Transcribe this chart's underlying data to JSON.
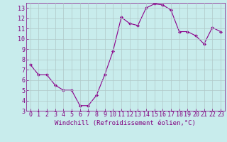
{
  "x": [
    0,
    1,
    2,
    3,
    4,
    5,
    6,
    7,
    8,
    9,
    10,
    11,
    12,
    13,
    14,
    15,
    16,
    17,
    18,
    19,
    20,
    21,
    22,
    23
  ],
  "y": [
    7.5,
    6.5,
    6.5,
    5.5,
    5.0,
    5.0,
    3.5,
    3.5,
    4.5,
    6.5,
    8.8,
    12.1,
    11.5,
    11.3,
    13.0,
    13.4,
    13.3,
    12.8,
    10.7,
    10.7,
    10.3,
    9.5,
    11.1,
    10.7
  ],
  "line_color": "#8B008B",
  "marker": "D",
  "marker_size": 2,
  "bg_color": "#c8ecec",
  "grid_color": "#b0c8c8",
  "xlabel": "Windchill (Refroidissement éolien,°C)",
  "ylabel": "",
  "xlim": [
    -0.5,
    23.5
  ],
  "ylim": [
    3,
    13.5
  ],
  "yticks": [
    3,
    4,
    5,
    6,
    7,
    8,
    9,
    10,
    11,
    12,
    13
  ],
  "xticks": [
    0,
    1,
    2,
    3,
    4,
    5,
    6,
    7,
    8,
    9,
    10,
    11,
    12,
    13,
    14,
    15,
    16,
    17,
    18,
    19,
    20,
    21,
    22,
    23
  ],
  "tick_color": "#800080",
  "label_color": "#800080",
  "font_size": 6,
  "xlabel_fontsize": 6.5
}
